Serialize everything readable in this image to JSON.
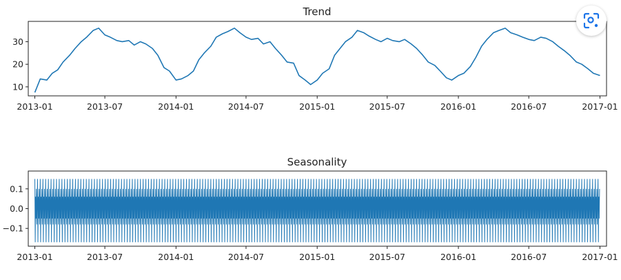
{
  "colors": {
    "line": "#1f77b4",
    "axis": "#222222",
    "lens": "#1a73e8"
  },
  "lens": {
    "icon": "lens-search-icon"
  },
  "chart_data": [
    {
      "type": "line",
      "title": "Trend",
      "xlabel": "",
      "ylabel": "",
      "xlim": [
        "2012-12-15",
        "2017-01-18"
      ],
      "ylim": [
        6,
        39
      ],
      "yticks": [
        10,
        20,
        30
      ],
      "xticks": [
        "2013-01",
        "2013-07",
        "2014-01",
        "2014-07",
        "2015-01",
        "2015-07",
        "2016-01",
        "2016-07",
        "2017-01"
      ],
      "series": [
        {
          "x": [
            "2013-01-01",
            "2013-01-15",
            "2013-02-01",
            "2013-02-15",
            "2013-03-01",
            "2013-03-15",
            "2013-04-01",
            "2013-04-15",
            "2013-05-01",
            "2013-05-15",
            "2013-06-01",
            "2013-06-15",
            "2013-07-01",
            "2013-07-15",
            "2013-08-01",
            "2013-08-15",
            "2013-09-01",
            "2013-09-15",
            "2013-10-01",
            "2013-10-15",
            "2013-11-01",
            "2013-11-15",
            "2013-12-01",
            "2013-12-15",
            "2014-01-01",
            "2014-01-15",
            "2014-02-01",
            "2014-02-15",
            "2014-03-01",
            "2014-03-15",
            "2014-04-01",
            "2014-04-15",
            "2014-05-01",
            "2014-05-15",
            "2014-06-01",
            "2014-06-15",
            "2014-07-01",
            "2014-07-15",
            "2014-08-01",
            "2014-08-15",
            "2014-09-01",
            "2014-09-15",
            "2014-10-01",
            "2014-10-15",
            "2014-11-01",
            "2014-11-15",
            "2014-12-01",
            "2014-12-15",
            "2015-01-01",
            "2015-01-15",
            "2015-02-01",
            "2015-02-15",
            "2015-03-01",
            "2015-03-15",
            "2015-04-01",
            "2015-04-15",
            "2015-05-01",
            "2015-05-15",
            "2015-06-01",
            "2015-06-15",
            "2015-07-01",
            "2015-07-15",
            "2015-08-01",
            "2015-08-15",
            "2015-09-01",
            "2015-09-15",
            "2015-10-01",
            "2015-10-15",
            "2015-11-01",
            "2015-11-15",
            "2015-12-01",
            "2015-12-15",
            "2016-01-01",
            "2016-01-15",
            "2016-02-01",
            "2016-02-15",
            "2016-03-01",
            "2016-03-15",
            "2016-04-01",
            "2016-04-15",
            "2016-05-01",
            "2016-05-15",
            "2016-06-01",
            "2016-06-15",
            "2016-07-01",
            "2016-07-15",
            "2016-08-01",
            "2016-08-15",
            "2016-09-01",
            "2016-09-15",
            "2016-10-01",
            "2016-10-15",
            "2016-11-01",
            "2016-11-15",
            "2016-12-01",
            "2016-12-15",
            "2017-01-01"
          ],
          "values": [
            7.5,
            13.5,
            13.0,
            16.0,
            17.5,
            21.0,
            24.0,
            27.0,
            30.0,
            32.0,
            35.0,
            36.0,
            33.0,
            32.0,
            30.5,
            30.0,
            30.5,
            28.5,
            30.0,
            29.0,
            27.0,
            24.0,
            18.5,
            17.0,
            13.0,
            13.5,
            15.0,
            17.0,
            22.0,
            25.0,
            28.0,
            32.0,
            33.5,
            34.5,
            36.0,
            34.0,
            32.0,
            31.0,
            31.5,
            29.0,
            30.0,
            27.0,
            24.0,
            21.0,
            20.5,
            15.0,
            13.0,
            11.0,
            13.0,
            16.0,
            18.0,
            24.0,
            27.0,
            30.0,
            32.0,
            35.0,
            34.0,
            32.5,
            31.0,
            30.0,
            31.5,
            30.5,
            30.0,
            31.0,
            29.0,
            27.0,
            24.0,
            21.0,
            19.5,
            17.0,
            14.0,
            13.0,
            15.0,
            16.0,
            19.0,
            23.0,
            28.0,
            31.0,
            34.0,
            35.0,
            36.0,
            34.0,
            33.0,
            32.0,
            31.0,
            30.5,
            32.0,
            31.5,
            30.0,
            28.0,
            26.0,
            24.0,
            21.0,
            20.0,
            18.0,
            16.0,
            15.0
          ]
        }
      ]
    },
    {
      "type": "line",
      "title": "Seasonality",
      "xlabel": "",
      "ylabel": "",
      "xlim": [
        "2012-12-15",
        "2017-01-18"
      ],
      "ylim": [
        -0.19,
        0.19
      ],
      "yticks": [
        0.1,
        0.0,
        -0.1
      ],
      "ytick_labels": [
        "0.1",
        "0.0",
        "−0.1"
      ],
      "xticks": [
        "2013-01",
        "2013-07",
        "2014-01",
        "2014-07",
        "2015-01",
        "2015-07",
        "2016-01",
        "2016-07",
        "2017-01"
      ],
      "series": [
        {
          "start": "2013-01-01",
          "end": "2016-12-31",
          "frequency": "daily",
          "period_days": 7,
          "weekly_pattern": [
            0.15,
            -0.17,
            0.06,
            -0.05,
            0.1,
            -0.08,
            0.03
          ]
        }
      ]
    }
  ]
}
